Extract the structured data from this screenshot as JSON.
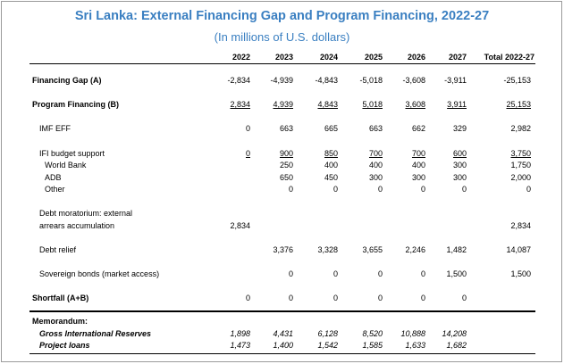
{
  "title": "Sri Lanka: External Financing Gap and Program Financing, 2022-27",
  "subtitle": "(In millions of U.S. dollars)",
  "headers": [
    "2022",
    "2023",
    "2024",
    "2025",
    "2026",
    "2027",
    "Total 2022-27"
  ],
  "rows": {
    "financing_gap": {
      "label": "Financing Gap (A)",
      "values": [
        "-2,834",
        "-4,939",
        "-4,843",
        "-5,018",
        "-3,608",
        "-3,911",
        "-25,153"
      ]
    },
    "program_financing": {
      "label": "Program Financing (B)",
      "values": [
        "2,834",
        "4,939",
        "4,843",
        "5,018",
        "3,608",
        "3,911",
        "25,153"
      ]
    },
    "imf_eff": {
      "label": "IMF EFF",
      "values": [
        "0",
        "663",
        "665",
        "663",
        "662",
        "329",
        "2,982"
      ]
    },
    "ifi_budget": {
      "label": "IFI budget support",
      "values": [
        "0",
        "900",
        "850",
        "700",
        "700",
        "600",
        "3,750"
      ]
    },
    "world_bank": {
      "label": "World Bank",
      "values": [
        "",
        "250",
        "400",
        "400",
        "400",
        "300",
        "1,750"
      ]
    },
    "adb": {
      "label": "ADB",
      "values": [
        "",
        "650",
        "450",
        "300",
        "300",
        "300",
        "2,000"
      ]
    },
    "other": {
      "label": "Other",
      "values": [
        "",
        "0",
        "0",
        "0",
        "0",
        "0",
        "0"
      ]
    },
    "debt_moratorium_1": {
      "label": "Debt moratorium: external"
    },
    "debt_moratorium_2": {
      "label": "arrears accumulation",
      "values": [
        "2,834",
        "",
        "",
        "",
        "",
        "",
        "2,834"
      ]
    },
    "debt_relief": {
      "label": "Debt relief",
      "values": [
        "",
        "3,376",
        "3,328",
        "3,655",
        "2,246",
        "1,482",
        "14,087"
      ]
    },
    "sovereign_bonds": {
      "label": "Sovereign bonds (market access)",
      "values": [
        "",
        "0",
        "0",
        "0",
        "0",
        "1,500",
        "1,500"
      ]
    },
    "shortfall": {
      "label": "Shortfall (A+B)",
      "values": [
        "0",
        "0",
        "0",
        "0",
        "0",
        "0",
        ""
      ]
    },
    "memorandum": {
      "label": "Memorandum:"
    },
    "gross_reserves": {
      "label": "Gross International Reserves",
      "values": [
        "1,898",
        "4,431",
        "6,128",
        "8,520",
        "10,888",
        "14,208",
        ""
      ]
    },
    "project_loans": {
      "label": "Project loans",
      "values": [
        "1,473",
        "1,400",
        "1,542",
        "1,585",
        "1,633",
        "1,682",
        ""
      ]
    }
  }
}
